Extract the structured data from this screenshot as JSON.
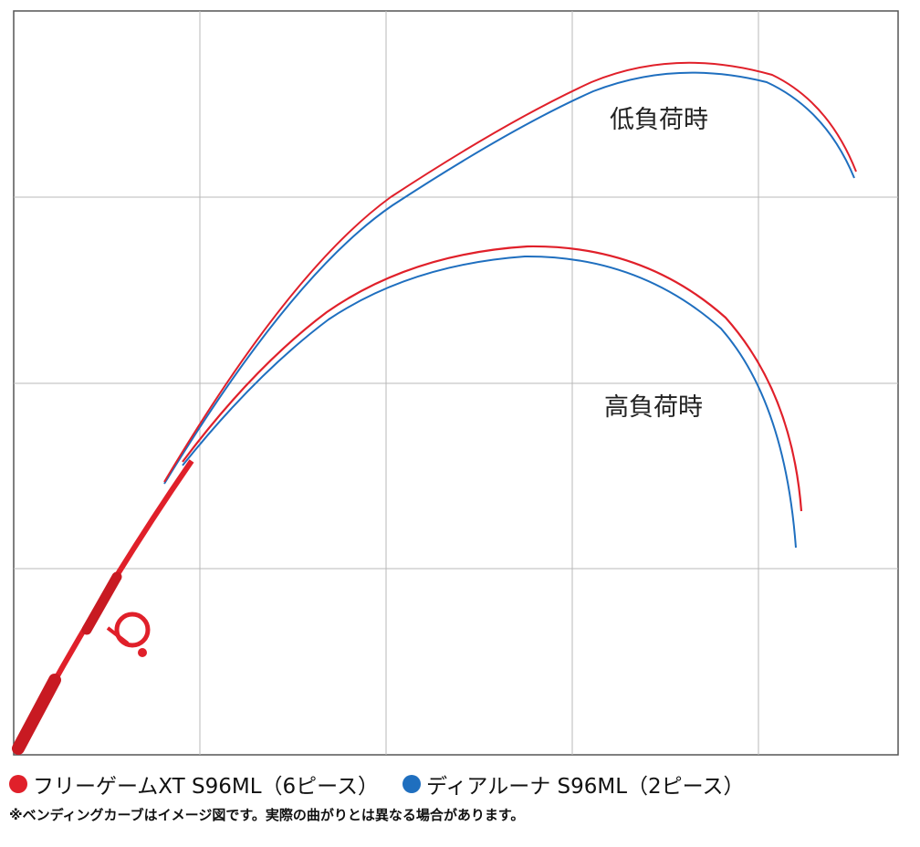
{
  "chart_data": {
    "type": "line",
    "grid": true,
    "annotations": {
      "low_load": "低負荷時",
      "high_load": "高負荷時"
    },
    "series": [
      {
        "name": "フリーゲームXT S96ML（6ピース）",
        "color": "#e0202a"
      },
      {
        "name": "ディアルーナ S96ML（2ピース）",
        "color": "#1f6fbf"
      }
    ]
  },
  "legend": {
    "item1": {
      "label": "フリーゲームXT S96ML（6ピース）",
      "color": "#e0202a"
    },
    "item2": {
      "label": "ディアルーナ S96ML（2ピース）",
      "color": "#1f6fbf"
    }
  },
  "note": "※ベンディングカーブはイメージ図です。実際の曲がりとは異なる場合があります。"
}
